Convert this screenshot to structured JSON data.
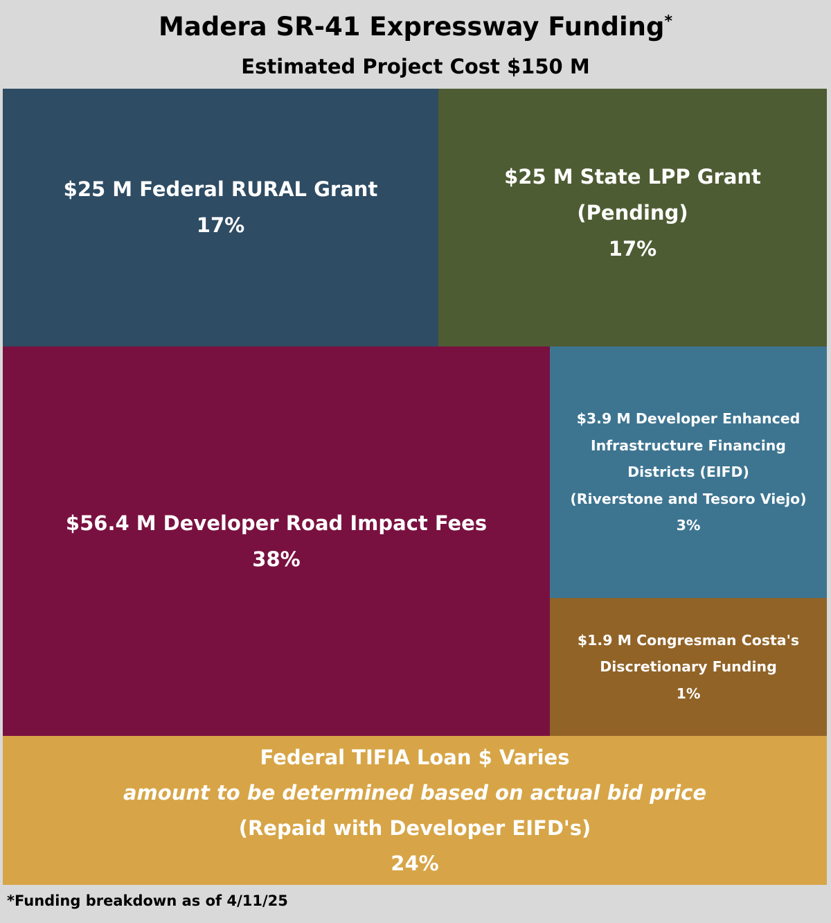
{
  "chart_data": {
    "type": "treemap",
    "title": "Madera SR-41 Expressway Funding",
    "title_mark": "*",
    "subtitle": "Estimated Project Cost $150 M",
    "total_cost_musd": 150,
    "segments": [
      {
        "id": "federal-rural",
        "lines": [
          "$25 M Federal RURAL Grant"
        ],
        "amount_musd": 25,
        "percent": 17,
        "percent_label": "17%",
        "color": "#2e4c63"
      },
      {
        "id": "state-lpp",
        "lines": [
          "$25 M State LPP Grant",
          "(Pending)"
        ],
        "amount_musd": 25,
        "percent": 17,
        "percent_label": "17%",
        "color": "#4e5c33"
      },
      {
        "id": "road-impact-fees",
        "lines": [
          "$56.4 M Developer Road Impact Fees"
        ],
        "amount_musd": 56.4,
        "percent": 38,
        "percent_label": "38%",
        "color": "#791140"
      },
      {
        "id": "eifd",
        "lines": [
          "$3.9 M Developer Enhanced",
          "Infrastructure Financing",
          "Districts (EIFD)",
          "(Riverstone and Tesoro Viejo)"
        ],
        "amount_musd": 3.9,
        "percent": 3,
        "percent_label": "3%",
        "color": "#3d7591"
      },
      {
        "id": "costa-discretionary",
        "lines": [
          "$1.9 M Congresman Costa's",
          "Discretionary Funding"
        ],
        "amount_musd": 1.9,
        "percent": 1,
        "percent_label": "1%",
        "color": "#916327"
      },
      {
        "id": "tifia-loan",
        "lines": [
          "Federal TIFIA Loan $ Varies",
          "amount to be determined based on actual bid price",
          "(Repaid with Developer EIFD's)"
        ],
        "italic_line_index": 1,
        "amount_musd": null,
        "percent": 24,
        "percent_label": "24%",
        "color": "#d7a547"
      }
    ],
    "footnote": "*Funding breakdown as of 4/11/25"
  }
}
